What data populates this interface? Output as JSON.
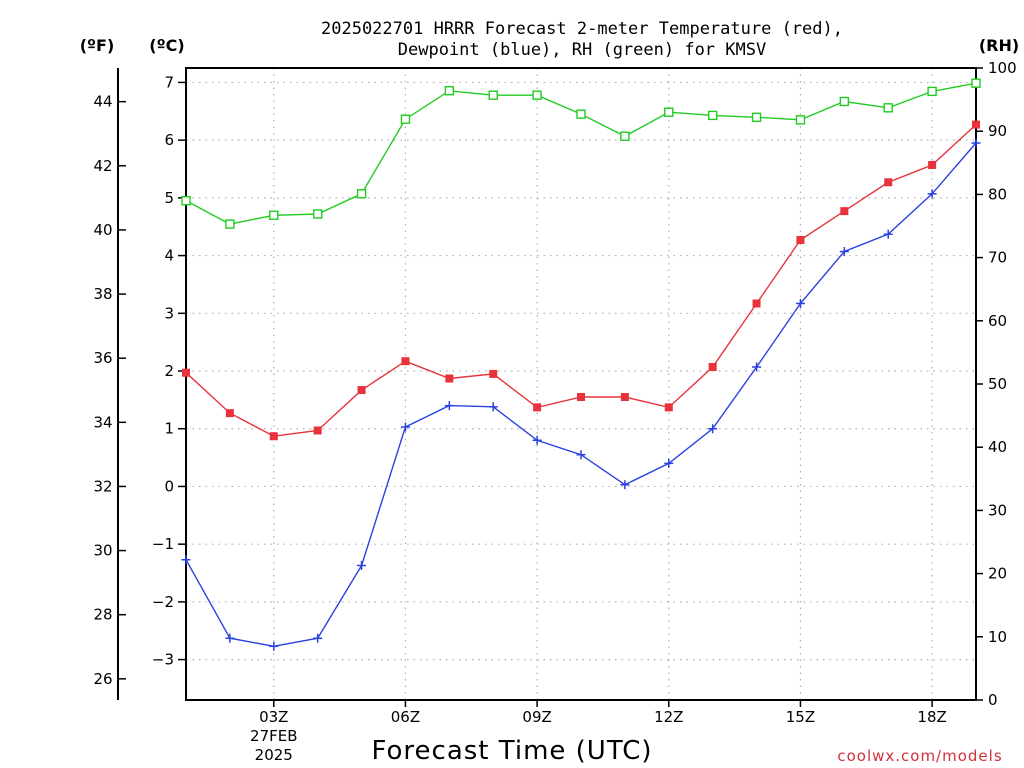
{
  "chart_data": {
    "type": "line",
    "title": [
      "2025022701 HRRR Forecast 2-meter Temperature (red),",
      "Dewpoint (blue), RH (green) for KMSV"
    ],
    "xlabel": "Forecast Time (UTC)",
    "ylabel_f": "(ºF)",
    "ylabel_c": "(ºC)",
    "ylabel_rh": "(RH)",
    "credit": "coolwx.com/models",
    "x": [
      1,
      2,
      3,
      4,
      5,
      6,
      7,
      8,
      9,
      10,
      11,
      12,
      13,
      14,
      15,
      16,
      17,
      18,
      19
    ],
    "xlim": [
      1,
      19
    ],
    "x_ticks": [
      {
        "x": 3,
        "label": "03Z",
        "sub": [
          "27FEB",
          "2025"
        ]
      },
      {
        "x": 6,
        "label": "06Z",
        "sub": []
      },
      {
        "x": 9,
        "label": "09Z",
        "sub": []
      },
      {
        "x": 12,
        "label": "12Z",
        "sub": []
      },
      {
        "x": 15,
        "label": "15Z",
        "sub": []
      },
      {
        "x": 18,
        "label": "18Z",
        "sub": []
      }
    ],
    "ylim_c": [
      -3.7,
      7.25
    ],
    "y_ticks_c": [
      "7",
      "6",
      "5",
      "4",
      "3",
      "2",
      "1",
      "0",
      "−1",
      "−2",
      "−3"
    ],
    "y_ticks_f": [
      "44",
      "42",
      "40",
      "38",
      "36",
      "34",
      "32",
      "30",
      "28",
      "26"
    ],
    "ylim_rh": [
      0,
      100
    ],
    "y_ticks_rh": [
      "100",
      "90",
      "80",
      "70",
      "60",
      "50",
      "40",
      "30",
      "20",
      "10",
      "0"
    ],
    "grid": true,
    "series": [
      {
        "name": "Temperature",
        "axis": "c",
        "color": "#e8323c",
        "marker": "filled-square",
        "values": [
          1.97,
          1.27,
          0.87,
          0.97,
          1.67,
          2.17,
          1.87,
          1.95,
          1.37,
          1.55,
          1.55,
          1.37,
          2.07,
          3.17,
          4.27,
          4.77,
          5.27,
          5.57,
          6.27
        ]
      },
      {
        "name": "Dewpoint",
        "axis": "c",
        "color": "#2a40e0",
        "marker": "plus",
        "values": [
          -1.27,
          -2.63,
          -2.77,
          -2.63,
          -1.37,
          1.03,
          1.4,
          1.38,
          0.8,
          0.55,
          0.03,
          0.4,
          1.0,
          2.07,
          3.17,
          4.07,
          4.37,
          5.07,
          5.95
        ]
      },
      {
        "name": "RH",
        "axis": "rh",
        "color": "#22cc22",
        "marker": "open-square",
        "values": [
          79,
          75.3,
          76.7,
          76.9,
          80.1,
          91.9,
          96.4,
          95.7,
          95.7,
          92.7,
          89.2,
          93,
          92.5,
          92.2,
          91.8,
          94.7,
          93.7,
          96.3,
          97.6
        ]
      }
    ]
  }
}
